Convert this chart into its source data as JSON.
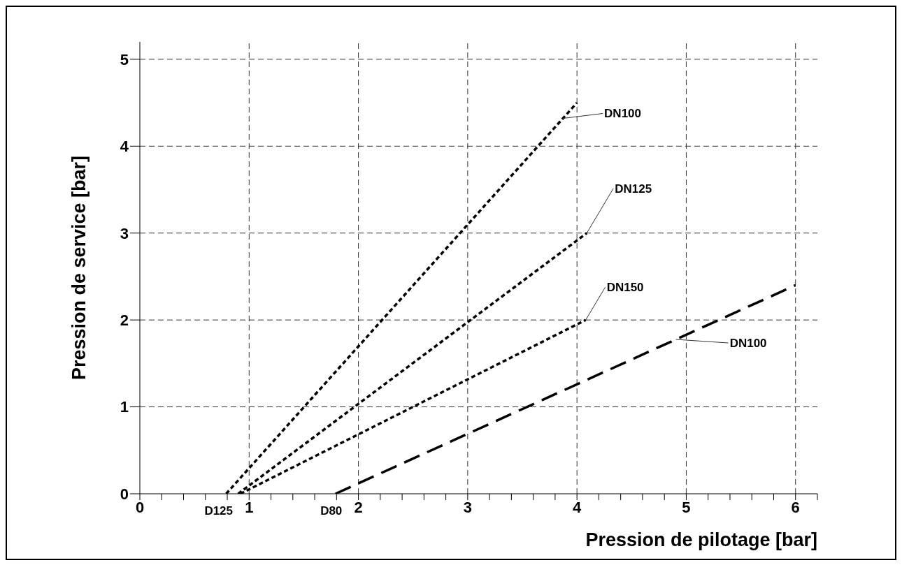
{
  "chart_data": {
    "type": "line",
    "xlabel": "Pression de pilotage [bar]",
    "ylabel": "Pression de service [bar]",
    "xlim": [
      0,
      6.2
    ],
    "xticks": [
      0,
      {
        "value": 0.2,
        "label": null
      },
      {
        "value": 0.4,
        "label": null
      },
      {
        "value": 0.6,
        "label": null
      },
      {
        "value": 0.8,
        "label": null
      },
      1,
      {
        "value": 1.2,
        "label": null
      },
      {
        "value": 1.4,
        "label": null
      },
      {
        "value": 1.6,
        "label": null
      },
      {
        "value": 1.8,
        "label": null
      },
      2,
      {
        "value": 2.2,
        "label": null
      },
      {
        "value": 2.4,
        "label": null
      },
      {
        "value": 2.6,
        "label": null
      },
      {
        "value": 2.8,
        "label": null
      },
      3,
      {
        "value": 3.2,
        "label": null
      },
      {
        "value": 3.4,
        "label": null
      },
      {
        "value": 3.6,
        "label": null
      },
      {
        "value": 3.8,
        "label": null
      },
      4,
      {
        "value": 4.2,
        "label": null
      },
      {
        "value": 4.4,
        "label": null
      },
      {
        "value": 4.6,
        "label": null
      },
      {
        "value": 4.8,
        "label": null
      },
      5,
      {
        "value": 5.2,
        "label": null
      },
      {
        "value": 5.4,
        "label": null
      },
      {
        "value": 5.6,
        "label": null
      },
      {
        "value": 5.8,
        "label": null
      },
      6,
      {
        "value": 6.2,
        "label": null
      }
    ],
    "ylim": [
      0,
      5.2
    ],
    "yticks": [
      0,
      1,
      2,
      3,
      4,
      5
    ],
    "grid": true,
    "series": [
      {
        "name": "DN100",
        "color": "#000000",
        "line_style": "dotted",
        "x": [
          0.79,
          4.0
        ],
        "values": [
          0,
          4.5
        ]
      },
      {
        "name": "DN125",
        "color": "#000000",
        "line_style": "dotted",
        "x": [
          0.9,
          4.09
        ],
        "values": [
          0,
          3.0
        ]
      },
      {
        "name": "DN150",
        "color": "#000000",
        "line_style": "dotted",
        "x": [
          0.92,
          4.08
        ],
        "values": [
          0,
          2.0
        ]
      },
      {
        "name": "DN100",
        "color": "#000000",
        "line_style": "dashed",
        "x": [
          1.79,
          6.0
        ],
        "values": [
          0,
          2.4
        ]
      }
    ],
    "annotations": [
      {
        "text": "D125",
        "x": 0.8,
        "y": 0
      },
      {
        "text": "D80",
        "x": 1.8,
        "y": 0
      }
    ]
  }
}
